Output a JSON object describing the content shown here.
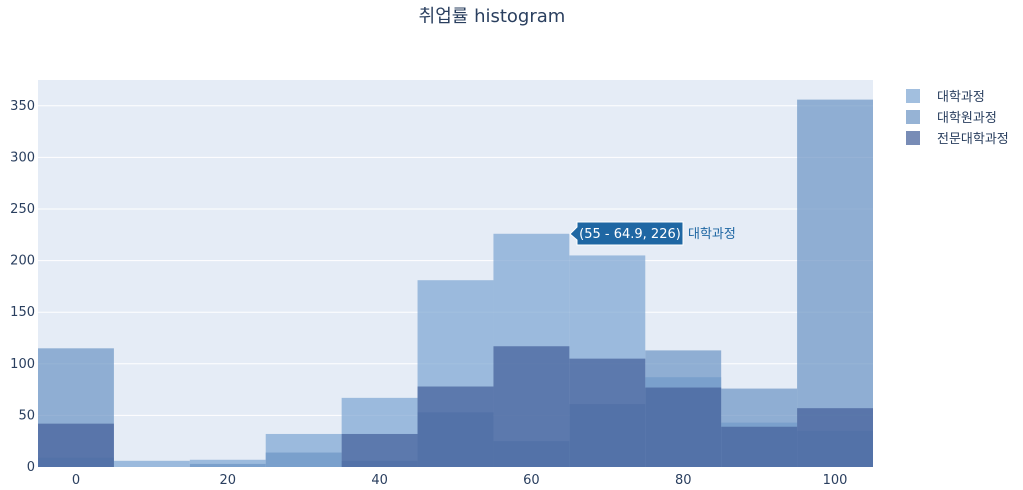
{
  "chart_data": {
    "type": "bar",
    "barmode": "overlay",
    "title": "취업률 histogram",
    "xlabel": "",
    "ylabel": "",
    "bin_start": [
      -5,
      5,
      15,
      25,
      35,
      45,
      55,
      65,
      75,
      85,
      95
    ],
    "bin_width": 10,
    "xlim": [
      -5,
      105
    ],
    "ylim": [
      0,
      375
    ],
    "x_ticks": [
      0,
      20,
      40,
      60,
      80,
      100
    ],
    "y_ticks": [
      0,
      50,
      100,
      150,
      200,
      250,
      300,
      350
    ],
    "grid": true,
    "legend_position": "top-right",
    "series": [
      {
        "name": "대학과정",
        "color": "#7ea6d3",
        "values": [
          9,
          6,
          7,
          32,
          67,
          181,
          226,
          205,
          87,
          43,
          35
        ]
      },
      {
        "name": "대학원과정",
        "color": "#6d95c5",
        "values": [
          115,
          0,
          3,
          14,
          6,
          53,
          25,
          61,
          113,
          76,
          356
        ]
      },
      {
        "name": "전문대학과정",
        "color": "#44609a",
        "values": [
          42,
          0,
          0,
          0,
          32,
          78,
          117,
          105,
          77,
          39,
          57
        ]
      }
    ],
    "hover": {
      "label": "(55 - 64.9, 226)",
      "series_name": "대학과정"
    }
  }
}
